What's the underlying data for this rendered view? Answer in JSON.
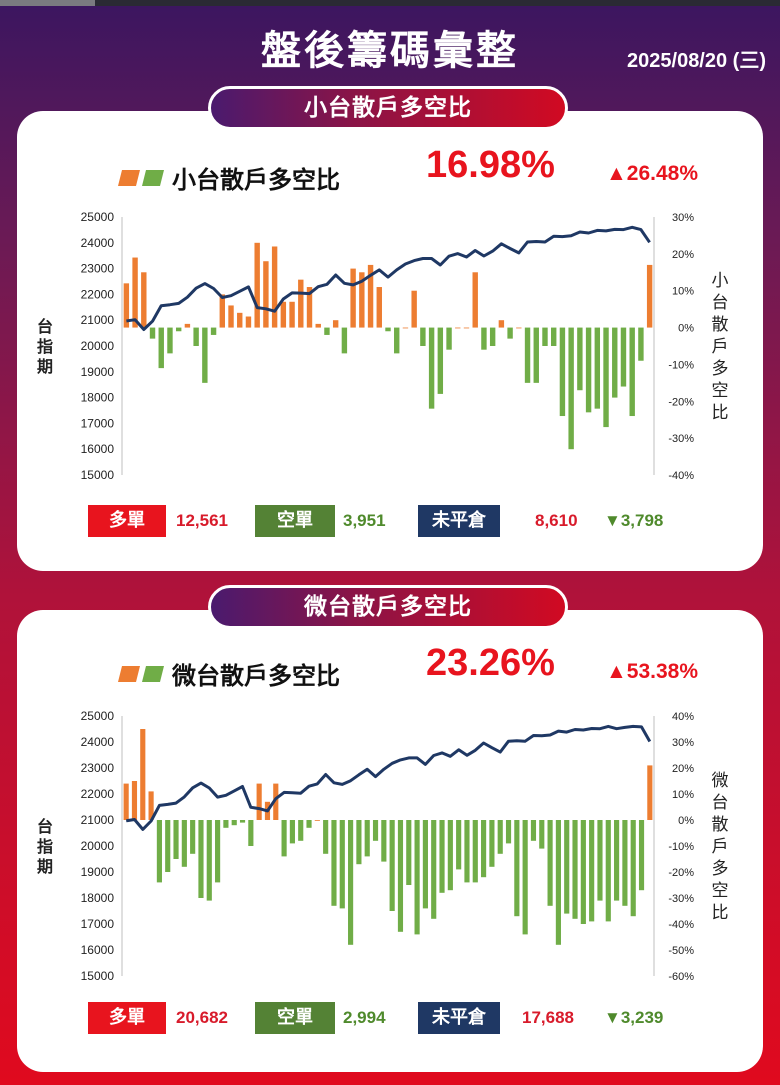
{
  "header": {
    "title": "盤後籌碼彙整",
    "date": "2025/08/20 (三)"
  },
  "colors": {
    "long": "#ed7d31",
    "short": "#70ad47",
    "index_line": "#1f3864",
    "tag_long": "#e8141e",
    "tag_short": "#548235",
    "tag_oi": "#1f3864"
  },
  "panels": [
    {
      "pill": "小台散戶多空比",
      "legend_label": "小台散戶多空比",
      "ratio": "16.98%",
      "change": "▲26.48%",
      "stats": {
        "long_label": "多單",
        "long_value": "12,561",
        "short_label": "空單",
        "short_value": "3,951",
        "oi_label": "未平倉",
        "oi_value": "8,610",
        "oi_change": "▼3,798"
      }
    },
    {
      "pill": "微台散戶多空比",
      "legend_label": "微台散戶多空比",
      "ratio": "23.26%",
      "change": "▲53.38%",
      "stats": {
        "long_label": "多單",
        "long_value": "20,682",
        "short_label": "空單",
        "short_value": "2,994",
        "oi_label": "未平倉",
        "oi_value": "17,688",
        "oi_change": "▼3,239"
      }
    }
  ],
  "chart_data": [
    {
      "type": "bar",
      "left_axis_label": "台指期",
      "right_axis_label": "小台散戶多空比",
      "left_ylim": [
        15000,
        25000
      ],
      "left_ticks": [
        "25000",
        "24000",
        "23000",
        "22000",
        "21000",
        "20000",
        "19000",
        "18000",
        "17000",
        "16000",
        "15000"
      ],
      "right_ylim": [
        -40,
        30
      ],
      "right_ticks": [
        "30%",
        "20%",
        "10%",
        "0%",
        "-10%",
        "-20%",
        "-30%",
        "-40%"
      ],
      "series": [
        {
          "name": "小台散戶多空比",
          "type": "bar",
          "values": [
            12,
            19,
            15,
            -3,
            -11,
            -7,
            -1,
            1,
            -5,
            -15,
            -2,
            9,
            6,
            4,
            3,
            23,
            18,
            22,
            7,
            7,
            13,
            11,
            1,
            -2,
            2,
            -7,
            16,
            15,
            17,
            11,
            -1,
            -7,
            0,
            10,
            -5,
            -22,
            -18,
            -6,
            0,
            0,
            15,
            -6,
            -5,
            2,
            -3,
            0,
            -15,
            -15,
            -5,
            -5,
            -24,
            -33,
            -17,
            -23,
            -22,
            -27,
            -19,
            -16,
            -24,
            -9,
            17
          ]
        },
        {
          "name": "台指期",
          "type": "line",
          "values": [
            20970,
            21020,
            20640,
            20960,
            21560,
            21600,
            21650,
            21890,
            22240,
            22420,
            22230,
            21880,
            21950,
            22120,
            22290,
            21490,
            21440,
            21350,
            21820,
            22060,
            22050,
            22030,
            22300,
            22390,
            22750,
            22430,
            22370,
            22510,
            22740,
            22950,
            22670,
            22950,
            23180,
            23310,
            23390,
            23390,
            23140,
            23480,
            23580,
            23450,
            23700,
            23490,
            23680,
            23960,
            23780,
            23610,
            24030,
            24050,
            24030,
            24250,
            24240,
            24270,
            24420,
            24380,
            24480,
            24460,
            24520,
            24510,
            24600,
            24510,
            24020
          ]
        }
      ]
    },
    {
      "type": "bar",
      "left_axis_label": "台指期",
      "right_axis_label": "微台散戶多空比",
      "left_ylim": [
        15000,
        25000
      ],
      "left_ticks": [
        "25000",
        "24000",
        "23000",
        "22000",
        "21000",
        "20000",
        "19000",
        "18000",
        "17000",
        "16000",
        "15000"
      ],
      "right_ylim": [
        -60,
        40
      ],
      "right_ticks": [
        "40%",
        "30%",
        "20%",
        "10%",
        "0%",
        "-10%",
        "-20%",
        "-30%",
        "-40%",
        "-50%",
        "-60%"
      ],
      "series": [
        {
          "name": "微台散戶多空比",
          "type": "bar",
          "values": [
            14,
            15,
            35,
            11,
            -24,
            -20,
            -15,
            -18,
            -13,
            -30,
            -31,
            -24,
            -3,
            -2,
            -1,
            -10,
            14,
            7,
            14,
            -14,
            -9,
            -8,
            -3,
            0,
            -13,
            -33,
            -34,
            -48,
            -17,
            -14,
            -8,
            -16,
            -35,
            -43,
            -25,
            -44,
            -34,
            -38,
            -28,
            -27,
            -19,
            -24,
            -24,
            -22,
            -18,
            -13,
            -9,
            -37,
            -44,
            -8,
            -11,
            -33,
            -48,
            -36,
            -38,
            -40,
            -39,
            -31,
            -39,
            -31,
            -33,
            -37,
            -27,
            21
          ]
        },
        {
          "name": "台指期",
          "type": "line",
          "values": [
            20970,
            21020,
            20640,
            20960,
            21560,
            21600,
            21650,
            21890,
            22240,
            22420,
            22230,
            21880,
            21950,
            22120,
            22290,
            21490,
            21440,
            21350,
            21820,
            22060,
            22050,
            22030,
            22300,
            22390,
            22750,
            22430,
            22370,
            22510,
            22740,
            22950,
            22670,
            22950,
            23180,
            23310,
            23390,
            23390,
            23140,
            23480,
            23580,
            23450,
            23700,
            23490,
            23680,
            23960,
            23780,
            23610,
            24030,
            24050,
            24030,
            24250,
            24240,
            24270,
            24420,
            24380,
            24480,
            24460,
            24520,
            24510,
            24600,
            24510,
            24560,
            24600,
            24580,
            24020
          ]
        }
      ]
    }
  ]
}
